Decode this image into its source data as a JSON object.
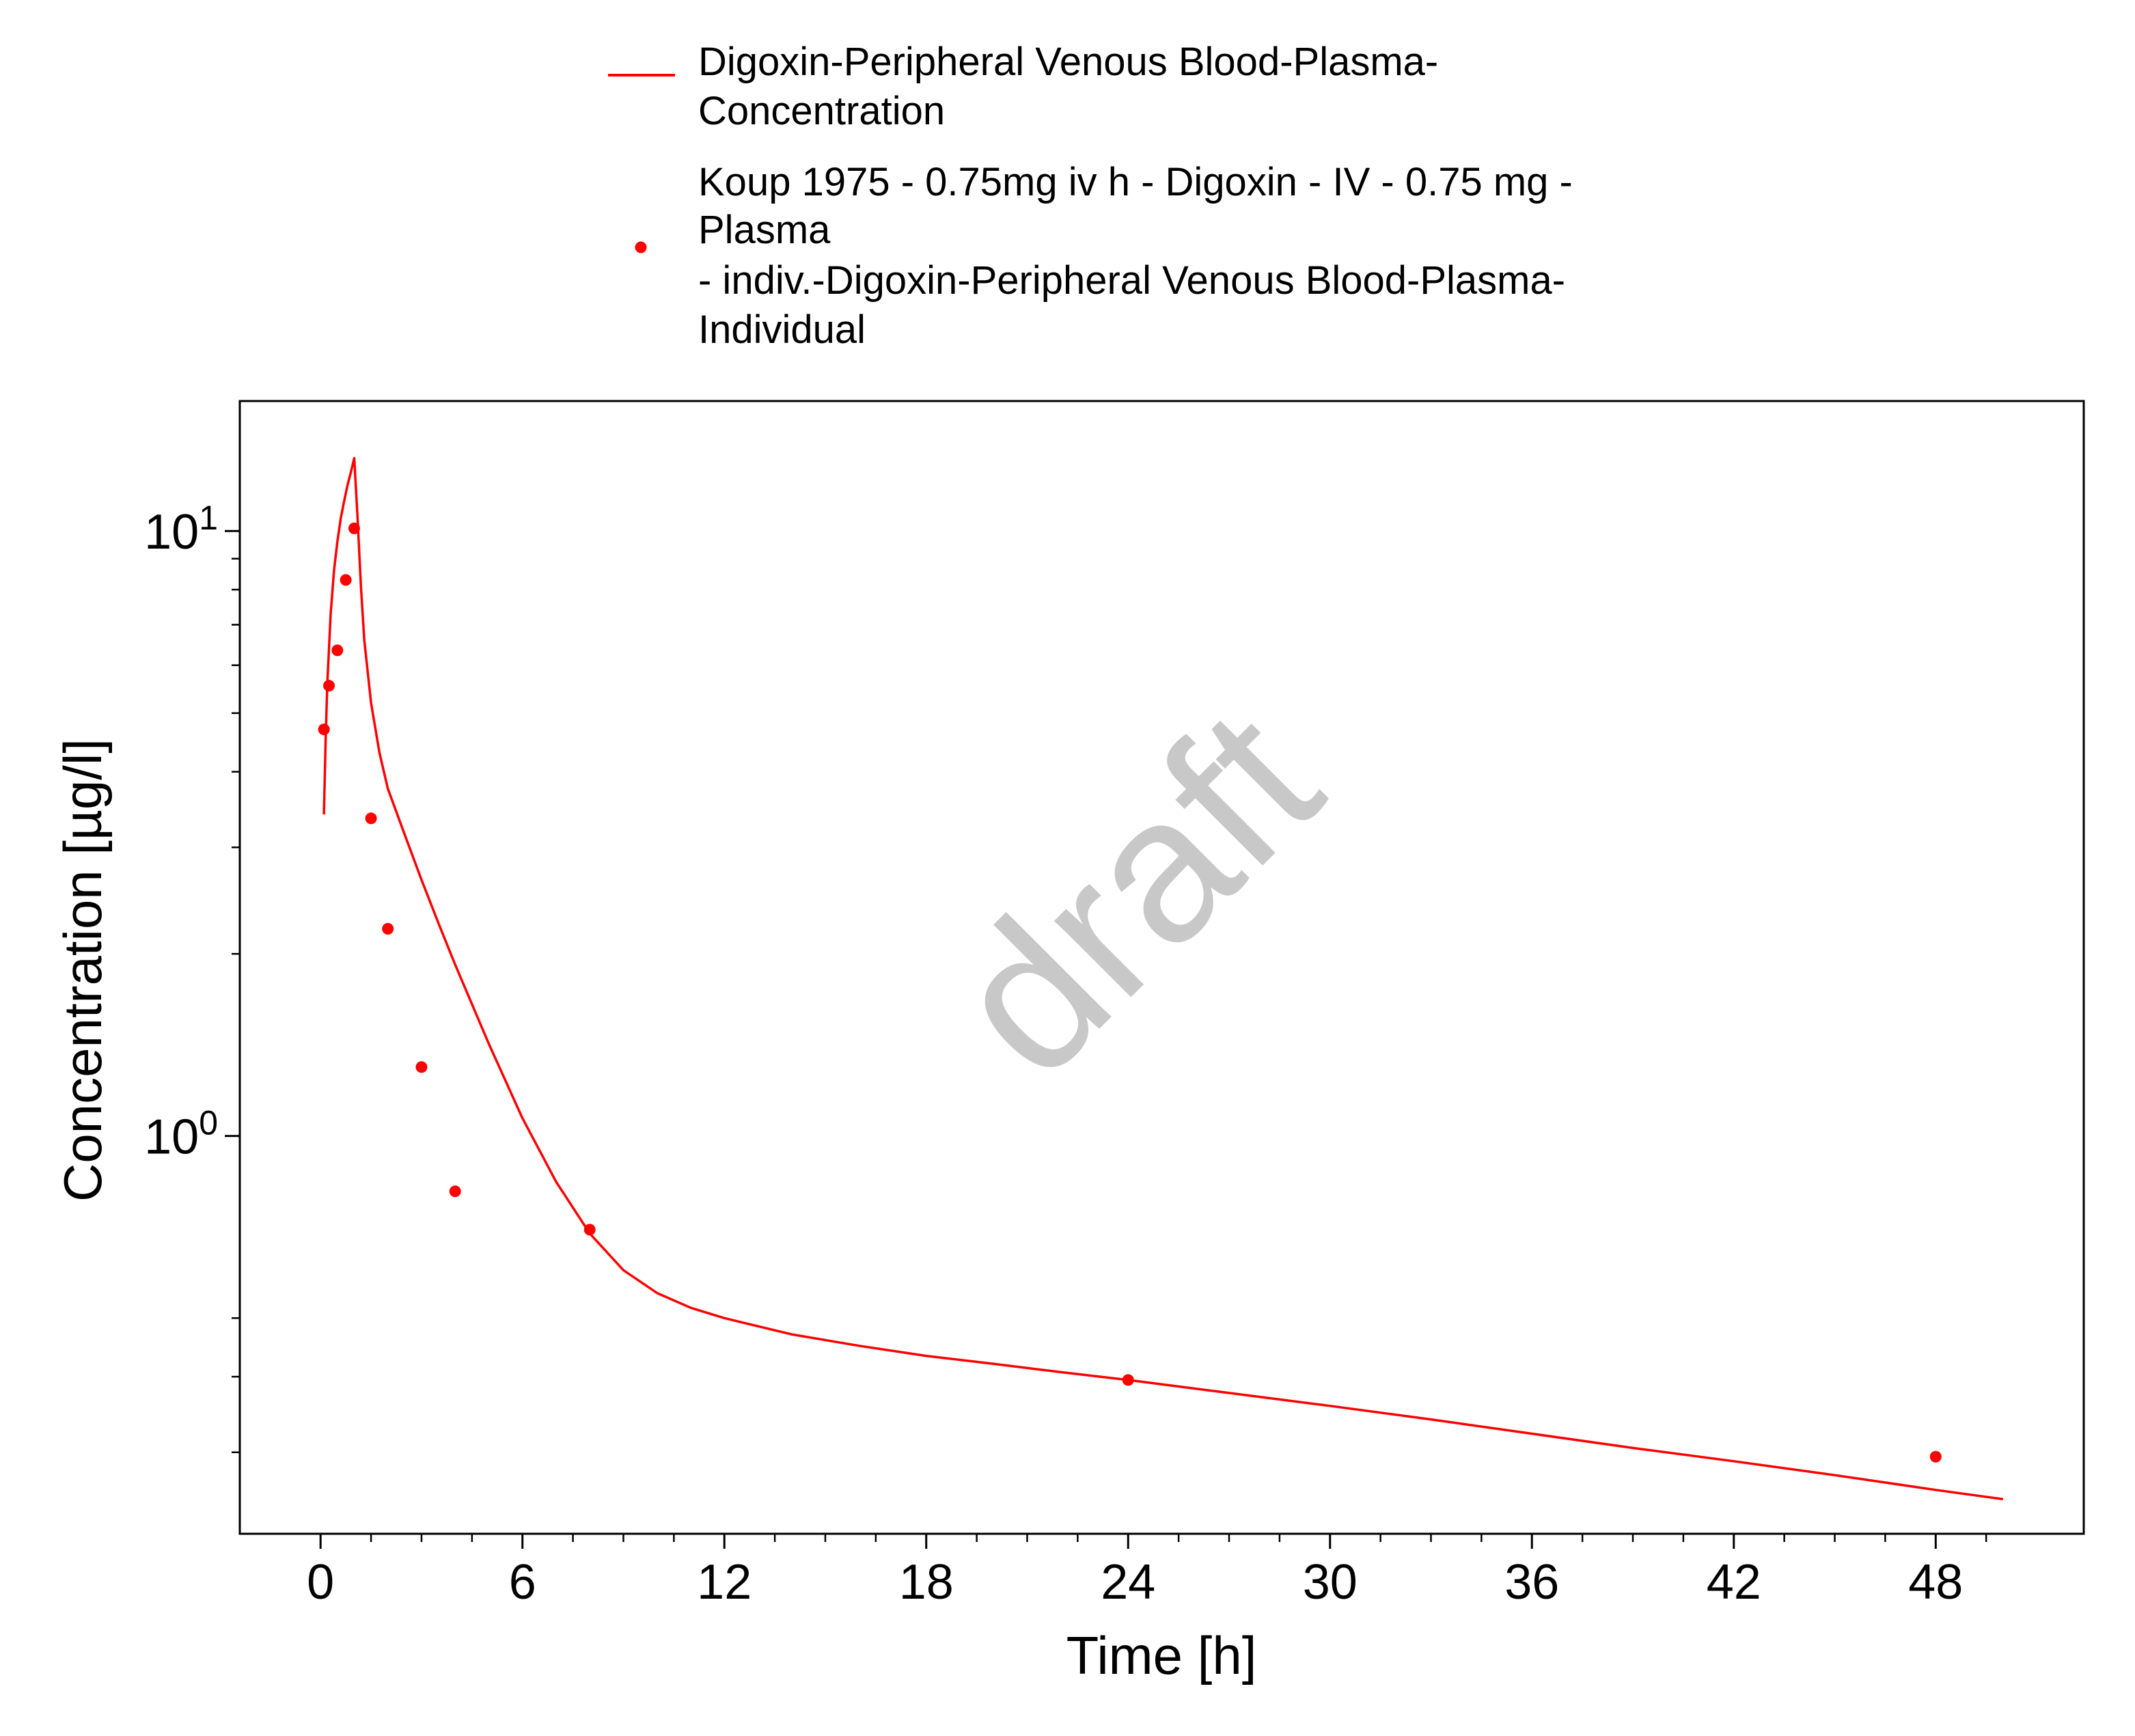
{
  "chart_data": {
    "type": "line",
    "xlabel": "Time [h]",
    "ylabel": "Concentration [µg/l]",
    "xlim": [
      -2.4,
      52.4
    ],
    "ylim": [
      0.22,
      16.4
    ],
    "y_scale": "log",
    "grid": false,
    "legend_position": "top-center",
    "watermark": "draft",
    "colors": {
      "series": "#ff0000",
      "frame": "#000000"
    },
    "x_ticks": [
      0,
      6,
      12,
      18,
      24,
      30,
      36,
      42,
      48
    ],
    "x_tick_labels": [
      "0",
      "6",
      "12",
      "18",
      "24",
      "30",
      "36",
      "42",
      "48"
    ],
    "y_major_ticks": [
      {
        "value": 1,
        "base": "10",
        "exp": "0"
      },
      {
        "value": 10,
        "base": "10",
        "exp": "1"
      }
    ],
    "y_minor_ticks": [
      0.3,
      0.4,
      0.5,
      2,
      3,
      4,
      5,
      6,
      7,
      8,
      9
    ],
    "series": [
      {
        "name_lines": [
          "Digoxin-Peripheral Venous Blood-Plasma-",
          "Concentration"
        ],
        "kind": "line",
        "color": "#ff0000",
        "points": [
          [
            0.1,
            3.4
          ],
          [
            0.15,
            4.5
          ],
          [
            0.2,
            5.6
          ],
          [
            0.3,
            7.3
          ],
          [
            0.4,
            8.6
          ],
          [
            0.5,
            9.6
          ],
          [
            0.6,
            10.5
          ],
          [
            0.7,
            11.2
          ],
          [
            0.8,
            11.9
          ],
          [
            0.9,
            12.5
          ],
          [
            1.0,
            13.2
          ],
          [
            1.1,
            10.5
          ],
          [
            1.2,
            8.1
          ],
          [
            1.3,
            6.6
          ],
          [
            1.5,
            5.2
          ],
          [
            1.75,
            4.3
          ],
          [
            2.0,
            3.75
          ],
          [
            2.5,
            3.15
          ],
          [
            3.0,
            2.65
          ],
          [
            3.5,
            2.25
          ],
          [
            4.0,
            1.92
          ],
          [
            5.0,
            1.42
          ],
          [
            6.0,
            1.07
          ],
          [
            7.0,
            0.84
          ],
          [
            8.0,
            0.69
          ],
          [
            9.0,
            0.6
          ],
          [
            10.0,
            0.55
          ],
          [
            11.0,
            0.52
          ],
          [
            12.0,
            0.5
          ],
          [
            14.0,
            0.47
          ],
          [
            16.0,
            0.45
          ],
          [
            18.0,
            0.433
          ],
          [
            20.0,
            0.42
          ],
          [
            22.0,
            0.407
          ],
          [
            24.0,
            0.395
          ],
          [
            27.0,
            0.376
          ],
          [
            30.0,
            0.358
          ],
          [
            33.0,
            0.34
          ],
          [
            36.0,
            0.322
          ],
          [
            39.0,
            0.305
          ],
          [
            42.0,
            0.29
          ],
          [
            45.0,
            0.275
          ],
          [
            48.0,
            0.26
          ],
          [
            50.0,
            0.251
          ]
        ]
      },
      {
        "name_lines": [
          "Koup 1975 - 0.75mg iv h - Digoxin - IV - 0.75 mg -",
          "Plasma",
          "- indiv.-Digoxin-Peripheral Venous Blood-Plasma-",
          "Individual"
        ],
        "kind": "scatter",
        "color": "#ff0000",
        "points": [
          [
            0.1,
            4.7
          ],
          [
            0.25,
            5.55
          ],
          [
            0.5,
            6.35
          ],
          [
            0.75,
            8.3
          ],
          [
            1.0,
            10.1
          ],
          [
            1.5,
            3.35
          ],
          [
            2.0,
            2.2
          ],
          [
            3.0,
            1.3
          ],
          [
            4.0,
            0.81
          ],
          [
            8.0,
            0.7
          ],
          [
            24.0,
            0.395
          ],
          [
            48.0,
            0.295
          ]
        ]
      }
    ]
  }
}
